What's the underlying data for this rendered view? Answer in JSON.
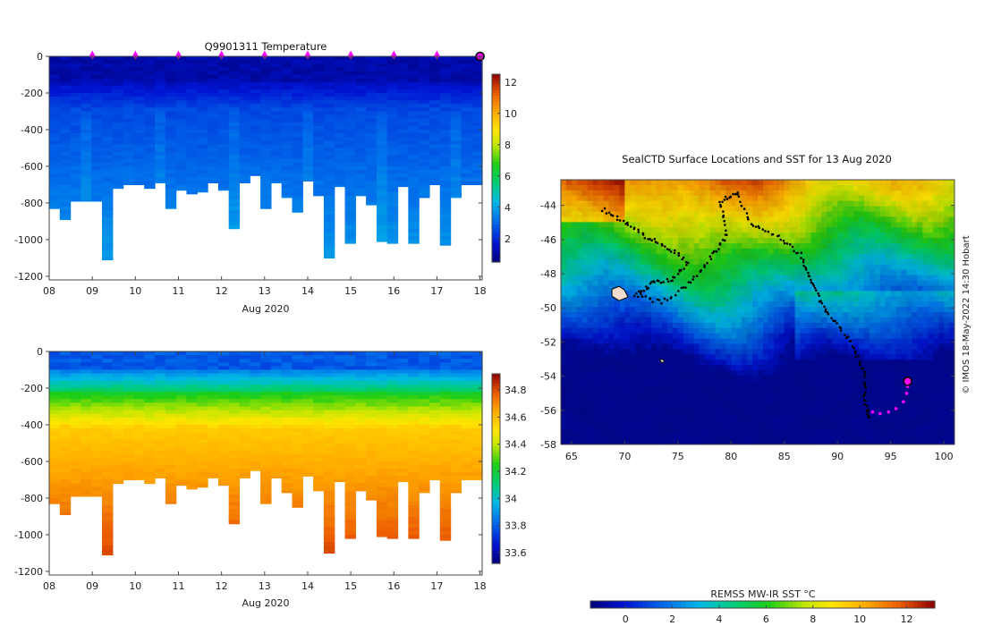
{
  "chart_data": [
    {
      "type": "heatmap",
      "title": "Q9901311  Temperature",
      "xlabel": "Aug 2020",
      "ylabel": "",
      "xlim": [
        8,
        18.05
      ],
      "ylim": [
        -1220,
        0
      ],
      "xticks": [
        "08",
        "09",
        "10",
        "11",
        "12",
        "13",
        "14",
        "15",
        "16",
        "17",
        "18"
      ],
      "yticks": [
        "0",
        "-200",
        "-400",
        "-600",
        "-800",
        "-1000",
        "-1200"
      ],
      "colorbar": {
        "min": 0.5,
        "max": 12.5,
        "ticks": [
          "2",
          "4",
          "6",
          "8",
          "10",
          "12"
        ]
      },
      "surface_markers_day": [
        9,
        10,
        11,
        12,
        13,
        14,
        15,
        16,
        17
      ],
      "latest_profile_day": 18
    },
    {
      "type": "heatmap",
      "title": "",
      "xlabel": "Aug 2020",
      "ylabel": "",
      "xlim": [
        8,
        18.05
      ],
      "ylim": [
        -1220,
        0
      ],
      "xticks": [
        "08",
        "09",
        "10",
        "11",
        "12",
        "13",
        "14",
        "15",
        "16",
        "17",
        "18"
      ],
      "yticks": [
        "0",
        "-200",
        "-400",
        "-600",
        "-800",
        "-1000",
        "-1200"
      ],
      "colorbar": {
        "min": 33.52,
        "max": 34.92,
        "ticks": [
          "33.6",
          "33.8",
          "34",
          "34.2",
          "34.4",
          "34.6",
          "34.8"
        ]
      }
    },
    {
      "type": "heatmap",
      "title": "SealCTD Surface Locations and SST for 13 Aug 2020",
      "xlabel": "",
      "ylabel": "",
      "xlim": [
        64,
        101
      ],
      "ylim": [
        -58,
        -42.5
      ],
      "xticks": [
        "65",
        "70",
        "75",
        "80",
        "85",
        "90",
        "95",
        "100"
      ],
      "yticks": [
        "-44",
        "-46",
        "-48",
        "-50",
        "-52",
        "-54",
        "-56",
        "-58"
      ],
      "colorbar": {
        "label": "REMSS MW-IR SST °C",
        "min": -1.5,
        "max": 13.2,
        "ticks": [
          "0",
          "2",
          "4",
          "6",
          "8",
          "10",
          "12"
        ]
      },
      "latest_position": {
        "lon": 96.6,
        "lat": -54.3
      }
    }
  ],
  "profile_depths": [
    830,
    890,
    790,
    790,
    790,
    1110,
    720,
    700,
    700,
    720,
    690,
    830,
    730,
    750,
    740,
    690,
    730,
    940,
    690,
    650,
    830,
    690,
    770,
    850,
    680,
    760,
    1100,
    710,
    1020,
    760,
    810,
    1010,
    1020,
    710,
    1020,
    770,
    700,
    1030,
    770,
    700,
    700
  ],
  "credit": "© IMOS 18-May-2022 14:30 Hobart",
  "colors": {
    "marker": "#ff00ff",
    "track": "#000000"
  }
}
